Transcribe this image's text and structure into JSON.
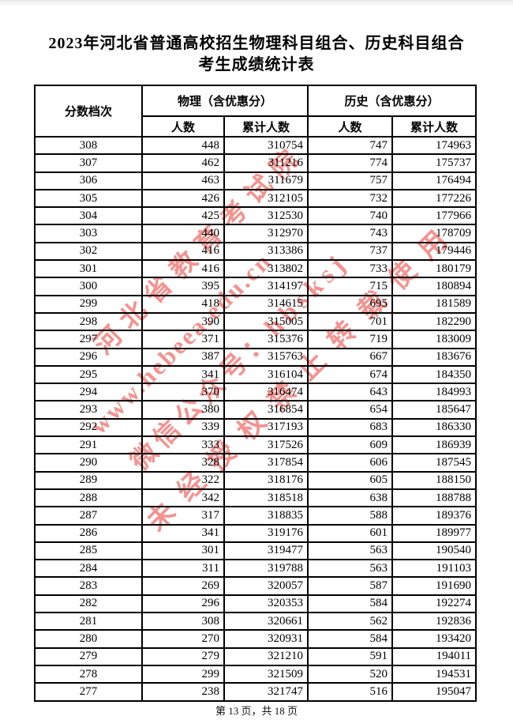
{
  "page": {
    "title_line1": "2023年河北省普通高校招生物理科目组合、历史科目组合",
    "title_line2": "考生成绩统计表",
    "footer": "第 13 页，共 18 页"
  },
  "table": {
    "headers": {
      "score_tier": "分数档次",
      "physics_group": "物理（含优惠分）",
      "history_group": "历史（含优惠分）",
      "count": "人数",
      "cumulative": "累计人数"
    },
    "columns": [
      "score_tier",
      "physics_count",
      "physics_cumulative",
      "history_count",
      "history_cumulative"
    ],
    "rows": [
      [
        308,
        448,
        310754,
        747,
        174963
      ],
      [
        307,
        462,
        311216,
        774,
        175737
      ],
      [
        306,
        463,
        311679,
        757,
        176494
      ],
      [
        305,
        426,
        312105,
        732,
        177226
      ],
      [
        304,
        425,
        312530,
        740,
        177966
      ],
      [
        303,
        440,
        312970,
        743,
        178709
      ],
      [
        302,
        416,
        313386,
        737,
        179446
      ],
      [
        301,
        416,
        313802,
        733,
        180179
      ],
      [
        300,
        395,
        314197,
        715,
        180894
      ],
      [
        299,
        418,
        314615,
        695,
        181589
      ],
      [
        298,
        390,
        315005,
        701,
        182290
      ],
      [
        297,
        371,
        315376,
        719,
        183009
      ],
      [
        296,
        387,
        315763,
        667,
        183676
      ],
      [
        295,
        341,
        316104,
        674,
        184350
      ],
      [
        294,
        370,
        316474,
        643,
        184993
      ],
      [
        293,
        380,
        316854,
        654,
        185647
      ],
      [
        292,
        339,
        317193,
        683,
        186330
      ],
      [
        291,
        333,
        317526,
        609,
        186939
      ],
      [
        290,
        328,
        317854,
        606,
        187545
      ],
      [
        289,
        322,
        318176,
        605,
        188150
      ],
      [
        288,
        342,
        318518,
        638,
        188788
      ],
      [
        287,
        317,
        318835,
        588,
        189376
      ],
      [
        286,
        341,
        319176,
        601,
        189977
      ],
      [
        285,
        301,
        319477,
        563,
        190540
      ],
      [
        284,
        311,
        319788,
        563,
        191103
      ],
      [
        283,
        269,
        320057,
        587,
        191690
      ],
      [
        282,
        296,
        320353,
        584,
        192274
      ],
      [
        281,
        308,
        320661,
        562,
        192836
      ],
      [
        280,
        270,
        320931,
        584,
        193420
      ],
      [
        279,
        279,
        321210,
        591,
        194011
      ],
      [
        278,
        299,
        321509,
        520,
        194531
      ],
      [
        277,
        238,
        321747,
        516,
        195047
      ]
    ]
  },
  "watermark": {
    "color": "#f4928f",
    "lines": [
      {
        "text": "河北省教育考试院"
      },
      {
        "text": "www.hebeea.edu.cn"
      },
      {
        "text": "微信公众号：hbsksj"
      },
      {
        "text": "未经授权禁止转载使用"
      }
    ]
  }
}
